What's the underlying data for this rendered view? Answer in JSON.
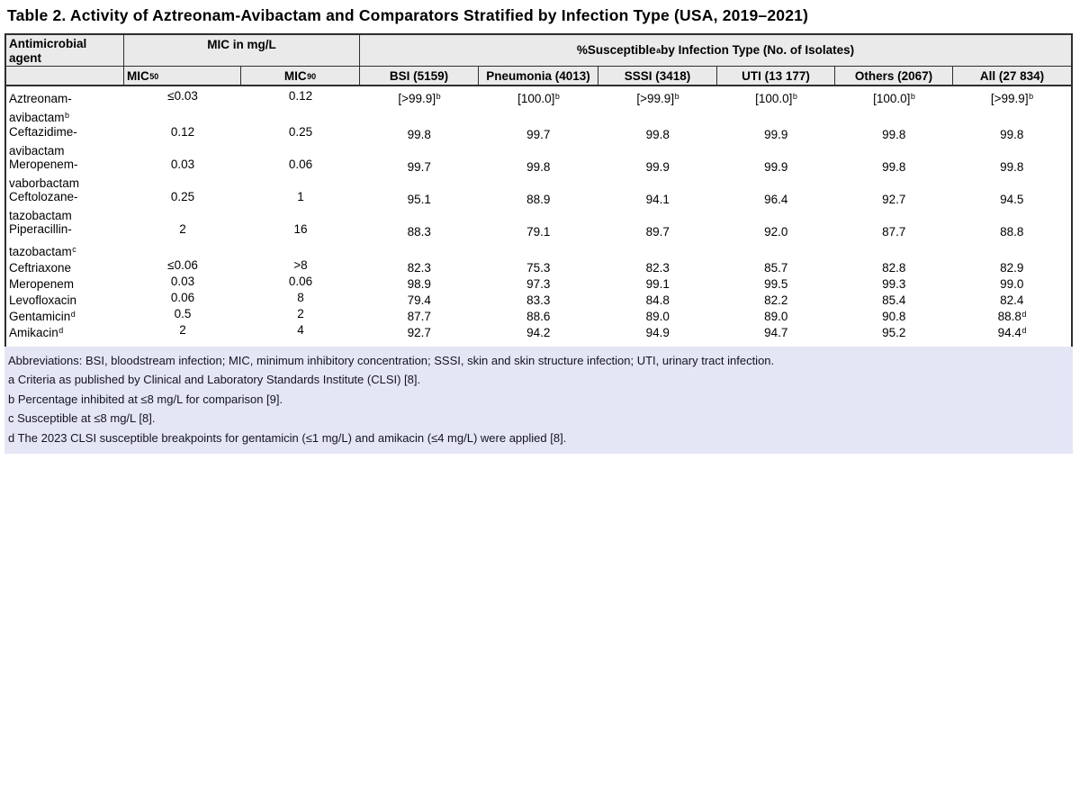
{
  "title": "Table 2. Activity of Aztreonam-Avibactam and Comparators Stratified by Infection Type (USA, 2019–2021)",
  "table": {
    "header": {
      "agent": "Antimicrobial agent",
      "mic_group": "MIC in mg/L",
      "susc_pre": "%Susceptible",
      "susc_sup": "a",
      "susc_post": " by Infection Type (No. of Isolates)",
      "mic50_label": "MIC",
      "mic50_sub": "50",
      "mic90_label": "MIC",
      "mic90_sub": "90",
      "cols": [
        "BSI (5159)",
        "Pneumonia (4013)",
        "SSSI (3418)",
        "UTI (13 177)",
        "Others (2067)",
        "All (27 834)"
      ]
    },
    "rows": [
      {
        "agent1": "Aztreonam-",
        "agent2": "avibactam",
        "agent2_sup": "b",
        "mic50": "≤0.03",
        "mic90": "0.12",
        "values": [
          {
            "v": "[>99.9]",
            "sup": "b"
          },
          {
            "v": "[100.0]",
            "sup": "b"
          },
          {
            "v": "[>99.9]",
            "sup": "b"
          },
          {
            "v": "[100.0]",
            "sup": "b"
          },
          {
            "v": "[100.0]",
            "sup": "b"
          },
          {
            "v": "[>99.9]",
            "sup": "b"
          }
        ]
      },
      {
        "agent1": "Ceftazidime-",
        "agent2": "avibactam",
        "mic50": "0.12",
        "mic90": "0.25",
        "values": [
          {
            "v": "99.8"
          },
          {
            "v": "99.7"
          },
          {
            "v": "99.8"
          },
          {
            "v": "99.9"
          },
          {
            "v": "99.8"
          },
          {
            "v": "99.8"
          }
        ]
      },
      {
        "agent1": "Meropenem-",
        "agent2": "vaborbactam",
        "mic50": "0.03",
        "mic90": "0.06",
        "values": [
          {
            "v": "99.7"
          },
          {
            "v": "99.8"
          },
          {
            "v": "99.9"
          },
          {
            "v": "99.9"
          },
          {
            "v": "99.8"
          },
          {
            "v": "99.8"
          }
        ]
      },
      {
        "agent1": "Ceftolozane-",
        "agent2": "tazobactam",
        "mic50": "0.25",
        "mic90": "1",
        "values": [
          {
            "v": "95.1"
          },
          {
            "v": "88.9"
          },
          {
            "v": "94.1"
          },
          {
            "v": "96.4"
          },
          {
            "v": "92.7"
          },
          {
            "v": "94.5"
          }
        ]
      },
      {
        "agent1": "Piperacillin-",
        "agent2": "tazobactam",
        "agent2_sup": "c",
        "mic50": "2",
        "mic90": "16",
        "values": [
          {
            "v": "88.3"
          },
          {
            "v": "79.1"
          },
          {
            "v": "89.7"
          },
          {
            "v": "92.0"
          },
          {
            "v": "87.7"
          },
          {
            "v": "88.8"
          }
        ]
      },
      {
        "agent1": "Ceftriaxone",
        "mic50": "≤0.06",
        "mic90": ">8",
        "values": [
          {
            "v": "82.3"
          },
          {
            "v": "75.3"
          },
          {
            "v": "82.3"
          },
          {
            "v": "85.7"
          },
          {
            "v": "82.8"
          },
          {
            "v": "82.9"
          }
        ]
      },
      {
        "agent1": "Meropenem",
        "mic50": "0.03",
        "mic90": "0.06",
        "values": [
          {
            "v": "98.9"
          },
          {
            "v": "97.3"
          },
          {
            "v": "99.1"
          },
          {
            "v": "99.5"
          },
          {
            "v": "99.3"
          },
          {
            "v": "99.0"
          }
        ]
      },
      {
        "agent1": "Levofloxacin",
        "mic50": "0.06",
        "mic90": "8",
        "values": [
          {
            "v": "79.4"
          },
          {
            "v": "83.3"
          },
          {
            "v": "84.8"
          },
          {
            "v": "82.2"
          },
          {
            "v": "85.4"
          },
          {
            "v": "82.4"
          }
        ]
      },
      {
        "agent1": "Gentamicin",
        "agent1_sup": "d",
        "mic50": "0.5",
        "mic90": "2",
        "values": [
          {
            "v": "87.7"
          },
          {
            "v": "88.6"
          },
          {
            "v": "89.0"
          },
          {
            "v": "89.0"
          },
          {
            "v": "90.8"
          },
          {
            "v": "88.8",
            "sup": "d"
          }
        ]
      },
      {
        "agent1": "Amikacin",
        "agent1_sup": "d",
        "mic50": "2",
        "mic90": "4",
        "values": [
          {
            "v": "92.7"
          },
          {
            "v": "94.2"
          },
          {
            "v": "94.9"
          },
          {
            "v": "94.7"
          },
          {
            "v": "95.2"
          },
          {
            "v": "94.4",
            "sup": "d"
          }
        ]
      }
    ]
  },
  "footnotes": {
    "abbreviations": "Abbreviations: BSI, bloodstream infection; MIC, minimum inhibitory concentration; SSSI, skin and skin structure infection; UTI, urinary tract infection.",
    "a": "a Criteria as published by Clinical and Laboratory Standards Institute (CLSI) [8].",
    "b": "b Percentage inhibited at ≤8 mg/L for comparison [9].",
    "c": "c Susceptible at ≤8 mg/L [8].",
    "d": "d The 2023 CLSI susceptible breakpoints for gentamicin (≤1 mg/L) and amikacin (≤4 mg/L) were applied [8]."
  },
  "colors": {
    "header_bg": "#EAEAEA",
    "footnote_bg": "#E4E6F6",
    "border": "#2E2E2E",
    "text": "#000000"
  }
}
